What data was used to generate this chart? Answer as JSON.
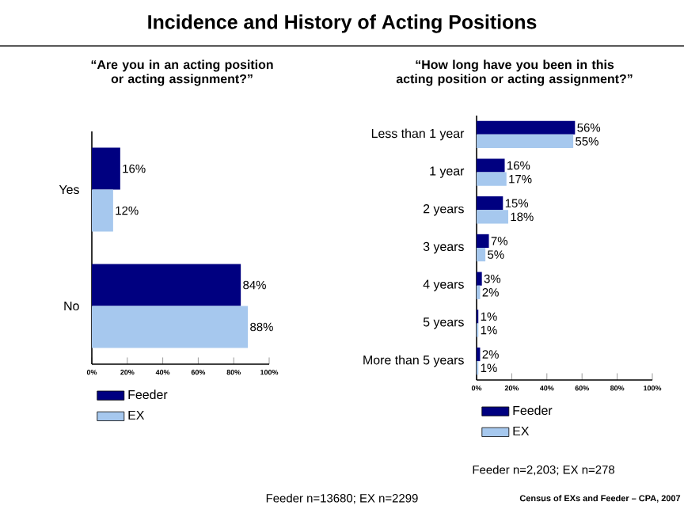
{
  "chart_data": [
    {
      "type": "bar",
      "orientation": "horizontal",
      "title": "Incidence and History of Acting Positions",
      "subtitle": "“Are you in an acting position or acting assignment?”",
      "categories": [
        "Yes",
        "No"
      ],
      "series": [
        {
          "name": "Feeder",
          "color": "#000080",
          "values": [
            16,
            84
          ],
          "value_labels": [
            "16%",
            "84%"
          ]
        },
        {
          "name": "EX",
          "color": "#a6c8ee",
          "values": [
            12,
            88
          ],
          "value_labels": [
            "12%",
            "88%"
          ]
        }
      ],
      "xlim": [
        0,
        100
      ],
      "xticks": [
        {
          "value": 0,
          "label": "0%"
        },
        {
          "value": 20,
          "label": "20%"
        },
        {
          "value": 40,
          "label": "40%"
        },
        {
          "value": 60,
          "label": "60%"
        },
        {
          "value": 80,
          "label": "80%"
        },
        {
          "value": 100,
          "label": "100%"
        }
      ],
      "legend": "bottom left",
      "grid": false,
      "annotations": [
        "Feeder n=13680; EX n=2299"
      ]
    },
    {
      "type": "bar",
      "orientation": "horizontal",
      "subtitle": "“How long have you been in this acting position or acting assignment?”",
      "categories": [
        "Less than 1 year",
        "1 year",
        "2 years",
        "3 years",
        "4 years",
        "5 years",
        "More than 5 years"
      ],
      "series": [
        {
          "name": "Feeder",
          "color": "#000080",
          "values": [
            56,
            16,
            15,
            7,
            3,
            1,
            2
          ],
          "value_labels": [
            "56%",
            "16%",
            "15%",
            "7%",
            "3%",
            "1%",
            "2%"
          ]
        },
        {
          "name": "EX",
          "color": "#a6c8ee",
          "values": [
            55,
            17,
            18,
            5,
            2,
            1,
            1
          ],
          "value_labels": [
            "55%",
            "17%",
            "18%",
            "5%",
            "2%",
            "1%",
            "1%"
          ]
        }
      ],
      "xlim": [
        0,
        100
      ],
      "xticks": [
        {
          "value": 0,
          "label": "0%"
        },
        {
          "value": 20,
          "label": "20%"
        },
        {
          "value": 40,
          "label": "40%"
        },
        {
          "value": 60,
          "label": "60%"
        },
        {
          "value": 80,
          "label": "80%"
        },
        {
          "value": 100,
          "label": "100%"
        }
      ],
      "legend": "bottom left",
      "grid": false,
      "annotations": [
        "Feeder n=2,203; EX n=278",
        "Census of EXs and Feeder – CPA, 2007"
      ]
    }
  ]
}
